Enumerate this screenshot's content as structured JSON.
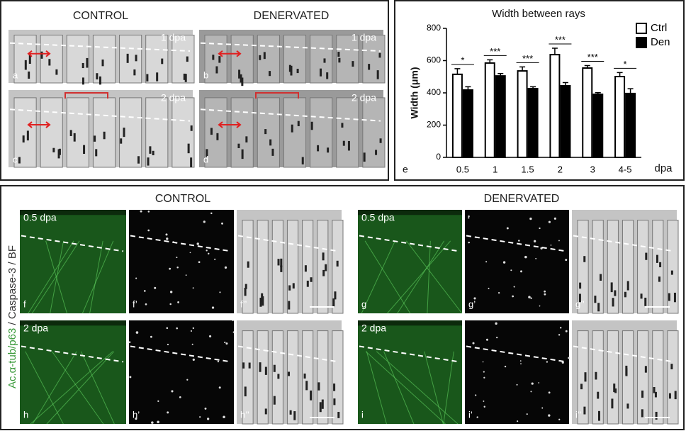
{
  "chart_data": {
    "type": "bar",
    "title": "Width between rays",
    "panel_label": "e",
    "y_label": "Width (μm)",
    "x_label": "dpa",
    "categories": [
      "0.5",
      "1",
      "1.5",
      "2",
      "3",
      "4-5"
    ],
    "series": [
      {
        "name": "Ctrl",
        "color": "#ffffff",
        "values": [
          515,
          585,
          536,
          637,
          554,
          501
        ],
        "errors": [
          35,
          20,
          25,
          40,
          15,
          25
        ]
      },
      {
        "name": "Den",
        "color": "#000000",
        "values": [
          418,
          505,
          426,
          444,
          391,
          396
        ],
        "errors": [
          20,
          15,
          12,
          20,
          10,
          30
        ]
      }
    ],
    "significance": [
      "*",
      "***",
      "***",
      "***",
      "***",
      "*"
    ],
    "ylim": [
      0,
      800
    ],
    "yticks": [
      0,
      200,
      400,
      600,
      800
    ],
    "legend": "upper right"
  },
  "top_left": {
    "headings": [
      "CONTROL",
      "DENERVATED"
    ],
    "images": [
      {
        "letter": "a",
        "stage": "1 dpa"
      },
      {
        "letter": "b",
        "stage": "1 dpa"
      },
      {
        "letter": "c",
        "stage": "2 dpa"
      },
      {
        "letter": "d",
        "stage": "2 dpa"
      }
    ]
  },
  "bottom": {
    "headings": [
      "CONTROL",
      "DENERVATED"
    ],
    "stain": [
      "Ac.α-tub/p63",
      "/ Caspase-3 / BF"
    ],
    "images": [
      {
        "letter": "f",
        "stage": "0.5 dpa"
      },
      {
        "letter": "f’"
      },
      {
        "letter": "f’’"
      },
      {
        "letter": "g",
        "stage": "0.5 dpa"
      },
      {
        "letter": "g’"
      },
      {
        "letter": "g’’"
      },
      {
        "letter": "h",
        "stage": "2 dpa"
      },
      {
        "letter": "h’"
      },
      {
        "letter": "h’’"
      },
      {
        "letter": "i",
        "stage": "2 dpa"
      },
      {
        "letter": "i’"
      },
      {
        "letter": "i’’"
      }
    ]
  }
}
